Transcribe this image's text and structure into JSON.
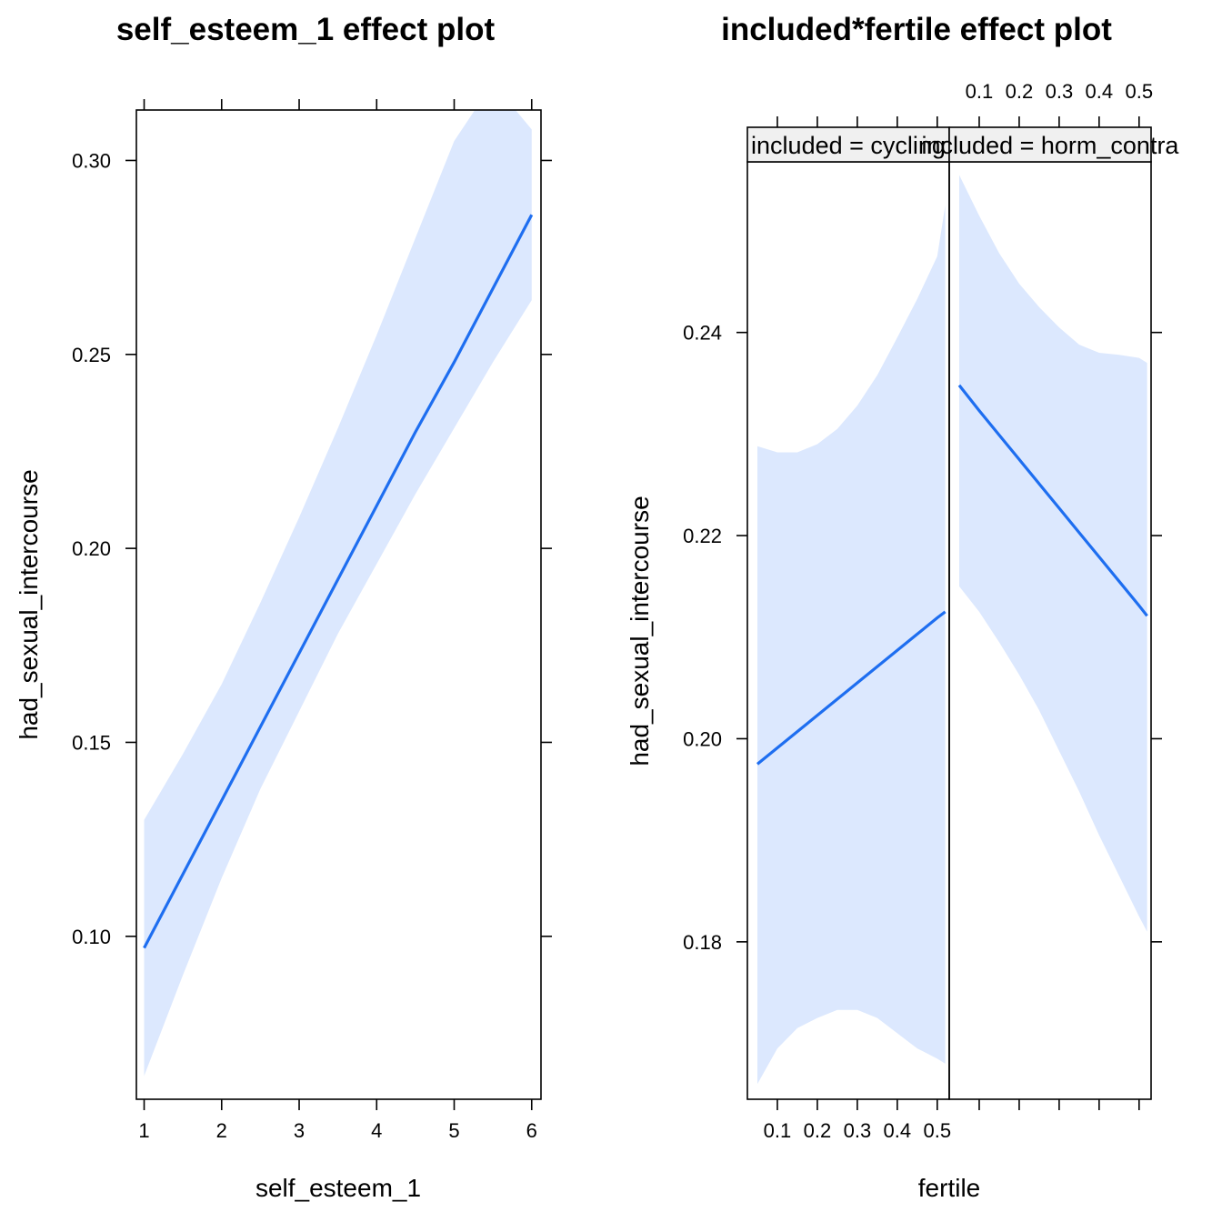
{
  "chart_data": [
    {
      "type": "line",
      "title": "self_esteem_1 effect plot",
      "xlabel": "self_esteem_1",
      "ylabel": "had_sexual_intercourse",
      "xlim": [
        0.9,
        6.12
      ],
      "ylim": [
        0.058,
        0.313
      ],
      "xticks": [
        1,
        2,
        3,
        4,
        5,
        6
      ],
      "xtick_labels": [
        "1",
        "2",
        "3",
        "4",
        "5",
        "6"
      ],
      "yticks": [
        0.1,
        0.15,
        0.2,
        0.25,
        0.3
      ],
      "ytick_labels": [
        "0.10",
        "0.15",
        "0.20",
        "0.25",
        "0.30"
      ],
      "grid": false,
      "colors": {
        "line": "#1e6ef0",
        "band": "#dce8fe"
      },
      "series": [
        {
          "x": [
            1,
            1.5,
            2,
            2.5,
            3,
            3.5,
            4,
            4.5,
            5,
            5.5,
            6
          ],
          "y": [
            0.097,
            0.116,
            0.135,
            0.154,
            0.173,
            0.192,
            0.211,
            0.23,
            0.248,
            0.267,
            0.286
          ],
          "lower": [
            0.064,
            0.09,
            0.115,
            0.138,
            0.158,
            0.178,
            0.196,
            0.214,
            0.231,
            0.248,
            0.264
          ],
          "upper": [
            0.13,
            0.147,
            0.165,
            0.186,
            0.208,
            0.231,
            0.255,
            0.28,
            0.305,
            0.32,
            0.308
          ]
        }
      ]
    },
    {
      "type": "line",
      "title": "included*fertile effect plot",
      "xlabel": "fertile",
      "ylabel": "had_sexual_intercourse",
      "ylim": [
        0.1645,
        0.2568
      ],
      "yticks": [
        0.18,
        0.2,
        0.22,
        0.24
      ],
      "ytick_labels": [
        "0.18",
        "0.20",
        "0.22",
        "0.24"
      ],
      "grid": false,
      "colors": {
        "line": "#1e6ef0",
        "band": "#dce8fe",
        "strip": "#f0f0f0"
      },
      "panels": [
        {
          "strip_label": "included = cycling",
          "xlim": [
            0.025,
            0.53
          ],
          "xticks": [
            0.1,
            0.2,
            0.3,
            0.4,
            0.5
          ],
          "xtick_labels": [
            "0.1",
            "0.2",
            "0.3",
            "0.4",
            "0.5"
          ],
          "series": [
            {
              "x": [
                0.05,
                0.1,
                0.15,
                0.2,
                0.25,
                0.3,
                0.35,
                0.4,
                0.45,
                0.5,
                0.52
              ],
              "y": [
                0.1975,
                0.1991,
                0.2007,
                0.2023,
                0.2039,
                0.2055,
                0.2071,
                0.2087,
                0.2103,
                0.2119,
                0.2125
              ],
              "lower": [
                0.166,
                0.1695,
                0.1715,
                0.1725,
                0.1733,
                0.1733,
                0.1725,
                0.171,
                0.1695,
                0.1685,
                0.168
              ],
              "upper": [
                0.2288,
                0.2282,
                0.2282,
                0.229,
                0.2305,
                0.2328,
                0.2358,
                0.2395,
                0.2433,
                0.2475,
                0.2525
              ]
            }
          ]
        },
        {
          "strip_label": "included = horm_contra",
          "xlim": [
            0.025,
            0.53
          ],
          "xticks": [
            0.1,
            0.2,
            0.3,
            0.4,
            0.5
          ],
          "xtick_labels": [
            "0.1",
            "0.2",
            "0.3",
            "0.4",
            "0.5"
          ],
          "series": [
            {
              "x": [
                0.05,
                0.1,
                0.15,
                0.2,
                0.25,
                0.3,
                0.35,
                0.4,
                0.45,
                0.5,
                0.52
              ],
              "y": [
                0.2348,
                0.2323,
                0.2299,
                0.2275,
                0.2251,
                0.2227,
                0.2203,
                0.2179,
                0.2155,
                0.2131,
                0.2121
              ],
              "lower": [
                0.215,
                0.2125,
                0.2095,
                0.2063,
                0.2028,
                0.1988,
                0.1948,
                0.1905,
                0.1865,
                0.1825,
                0.181
              ],
              "upper": [
                0.2555,
                0.2515,
                0.2478,
                0.2448,
                0.2425,
                0.2405,
                0.2388,
                0.238,
                0.2378,
                0.2375,
                0.237
              ]
            }
          ]
        }
      ]
    }
  ]
}
